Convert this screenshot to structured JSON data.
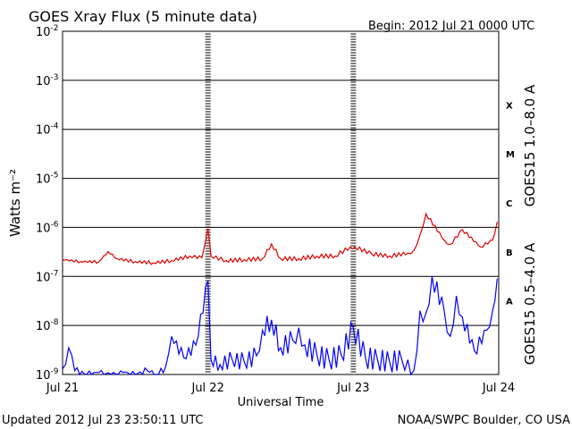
{
  "title": "GOES Xray Flux (5 minute data)",
  "begin_label": "Begin:  2012 Jul 21 0000 UTC",
  "updated_label": "Updated 2012 Jul 23 23:50:11 UTC",
  "credit_label": "NOAA/SWPC Boulder, CO USA",
  "colors": {
    "long_channel": "#e00000",
    "short_channel": "#0000ff",
    "axis": "#000000"
  },
  "chart_data": {
    "type": "line",
    "title": "GOES Xray Flux (5 minute data)",
    "xlabel": "Universal Time",
    "ylabel": "Watts m⁻²",
    "yscale": "log",
    "ylim": [
      1e-09,
      0.01
    ],
    "xlim": [
      "2012-07-21 00:00",
      "2012-07-24 00:00"
    ],
    "x_tick_labels": [
      "Jul 21",
      "Jul 22",
      "Jul 23",
      "Jul 24"
    ],
    "y_tick_labels": [
      {
        "base": "10",
        "exp": "-9",
        "value": 1e-09
      },
      {
        "base": "10",
        "exp": "-8",
        "value": 1e-08
      },
      {
        "base": "10",
        "exp": "-7",
        "value": 1e-07
      },
      {
        "base": "10",
        "exp": "-6",
        "value": 1e-06
      },
      {
        "base": "10",
        "exp": "-5",
        "value": 1e-05
      },
      {
        "base": "10",
        "exp": "-4",
        "value": 0.0001
      },
      {
        "base": "10",
        "exp": "-3",
        "value": 0.001
      },
      {
        "base": "10",
        "exp": "-2",
        "value": 0.01
      }
    ],
    "flare_classes": [
      {
        "label": "X",
        "value": 0.000316
      },
      {
        "label": "M",
        "value": 3.16e-05
      },
      {
        "label": "C",
        "value": 3.16e-06
      },
      {
        "label": "B",
        "value": 3.16e-07
      },
      {
        "label": "A",
        "value": 3.16e-08
      }
    ],
    "grid": true,
    "series": [
      {
        "name": "GOES15 1.0–8.0 A",
        "color": "#e00000",
        "x": [
          "2012-07-21 00:00",
          "2012-07-21 03:00",
          "2012-07-21 06:00",
          "2012-07-21 07:30",
          "2012-07-21 09:00",
          "2012-07-21 12:00",
          "2012-07-21 15:00",
          "2012-07-21 18:00",
          "2012-07-21 21:00",
          "2012-07-21 23:00",
          "2012-07-22 00:00",
          "2012-07-22 00:30",
          "2012-07-22 03:00",
          "2012-07-22 06:00",
          "2012-07-22 09:00",
          "2012-07-22 10:30",
          "2012-07-22 12:00",
          "2012-07-22 15:00",
          "2012-07-22 18:00",
          "2012-07-22 21:00",
          "2012-07-22 23:30",
          "2012-07-23 00:15",
          "2012-07-23 03:00",
          "2012-07-23 06:00",
          "2012-07-23 09:00",
          "2012-07-23 10:00",
          "2012-07-23 11:00",
          "2012-07-23 12:00",
          "2012-07-23 15:00",
          "2012-07-23 16:00",
          "2012-07-23 18:00",
          "2012-07-23 21:00",
          "2012-07-23 23:00",
          "2012-07-23 23:45"
        ],
        "values": [
          2.2e-07,
          2e-07,
          2e-07,
          3.2e-07,
          2.3e-07,
          2e-07,
          1.9e-07,
          2.1e-07,
          2.6e-07,
          2.4e-07,
          9.5e-07,
          2.6e-07,
          2.1e-07,
          2.2e-07,
          2.3e-07,
          4.6e-07,
          2.3e-07,
          2.3e-07,
          2.6e-07,
          2.6e-07,
          4e-07,
          4e-07,
          2.9e-07,
          2.6e-07,
          3e-07,
          3.4e-07,
          7e-07,
          1.9e-06,
          5.5e-07,
          4.5e-07,
          9e-07,
          4e-07,
          5.5e-07,
          1.3e-06
        ]
      },
      {
        "name": "GOES15 0.5–4.0 A",
        "color": "#0000ff",
        "x": [
          "2012-07-21 00:00",
          "2012-07-21 00:30",
          "2012-07-21 01:00",
          "2012-07-21 02:00",
          "2012-07-21 04:00",
          "2012-07-21 06:00",
          "2012-07-21 08:00",
          "2012-07-21 10:00",
          "2012-07-21 12:00",
          "2012-07-21 14:00",
          "2012-07-21 15:30",
          "2012-07-21 17:00",
          "2012-07-21 18:00",
          "2012-07-21 20:00",
          "2012-07-21 22:00",
          "2012-07-22 00:00",
          "2012-07-22 00:30",
          "2012-07-22 02:00",
          "2012-07-22 04:00",
          "2012-07-22 06:00",
          "2012-07-22 08:00",
          "2012-07-22 09:00",
          "2012-07-22 10:30",
          "2012-07-22 12:00",
          "2012-07-22 14:00",
          "2012-07-22 15:00",
          "2012-07-22 16:00",
          "2012-07-22 18:00",
          "2012-07-22 20:00",
          "2012-07-22 22:00",
          "2012-07-23 00:00",
          "2012-07-23 02:00",
          "2012-07-23 04:00",
          "2012-07-23 06:00",
          "2012-07-23 08:00",
          "2012-07-23 09:00",
          "2012-07-23 10:00",
          "2012-07-23 11:00",
          "2012-07-23 12:00",
          "2012-07-23 13:00",
          "2012-07-23 15:00",
          "2012-07-23 16:00",
          "2012-07-23 17:00",
          "2012-07-23 18:00",
          "2012-07-23 20:00",
          "2012-07-23 22:00",
          "2012-07-23 23:00",
          "2012-07-23 23:45"
        ],
        "values": [
          1.3e-09,
          1.6e-09,
          3.5e-09,
          1.2e-09,
          1e-09,
          1.1e-09,
          1e-09,
          1.1e-09,
          1e-09,
          1.2e-09,
          1e-09,
          1.4e-09,
          6e-09,
          2.2e-09,
          4e-09,
          8e-08,
          2e-09,
          1.6e-09,
          2e-09,
          1.8e-09,
          2.4e-09,
          8e-09,
          1.3e-08,
          3.5e-09,
          5e-09,
          9e-09,
          4e-09,
          2.5e-09,
          2e-09,
          2.5e-09,
          9e-09,
          2.2e-09,
          2e-09,
          1.8e-09,
          2e-09,
          2e-09,
          1.2e-09,
          2e-08,
          1.8e-08,
          1e-07,
          2e-08,
          6e-09,
          4e-08,
          1.5e-08,
          3e-09,
          8e-09,
          2e-08,
          9e-08
        ]
      }
    ]
  }
}
